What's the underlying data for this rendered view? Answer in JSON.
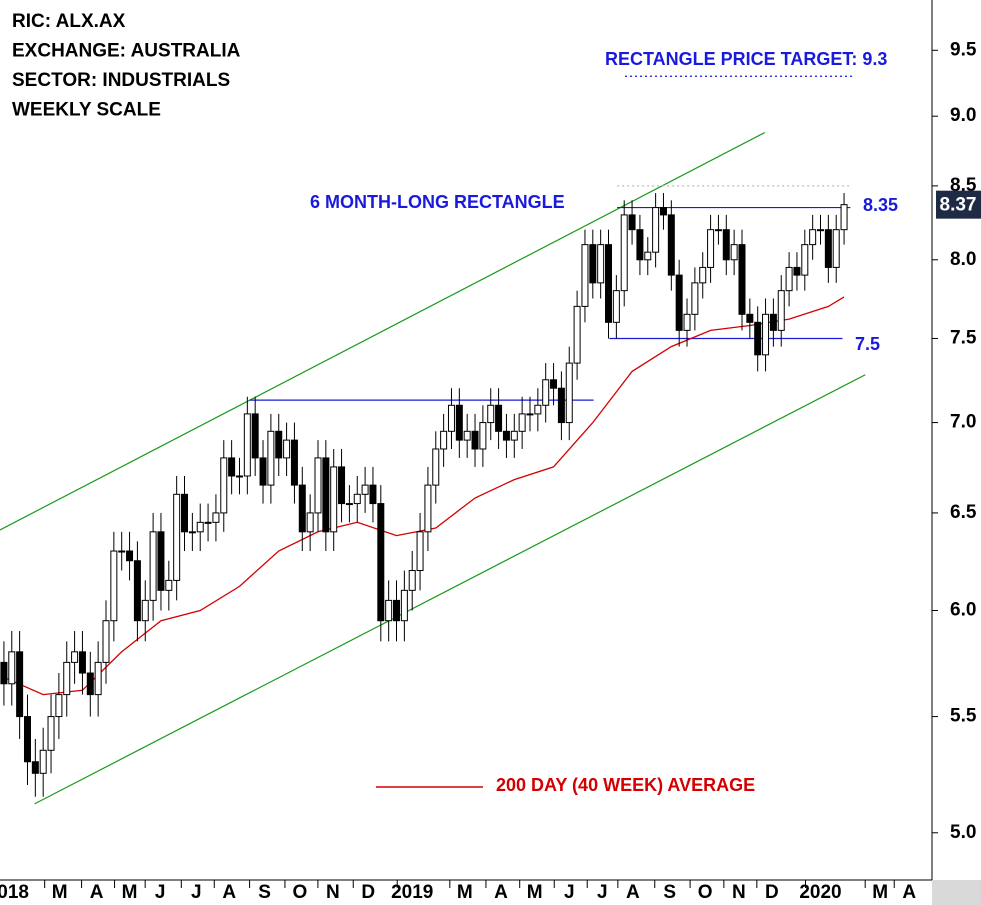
{
  "chart_data": {
    "type": "candlestick",
    "info": [
      "RIC: ALX.AX",
      "EXCHANGE: AUSTRALIA",
      "SECTOR: INDUSTRIALS",
      "WEEKLY SCALE"
    ],
    "log_scale": true,
    "xlim": [
      -0.5,
      118.2
    ],
    "ylim": [
      4.81,
      9.9
    ],
    "yticks": [
      {
        "value": 5,
        "label": "5.0"
      },
      5.5,
      {
        "value": 6,
        "label": "6.0"
      },
      6.5,
      {
        "value": 7,
        "label": "7.0"
      },
      7.5,
      {
        "value": 8,
        "label": "8.0"
      },
      8.5,
      {
        "value": 9,
        "label": "9.0"
      },
      9.5
    ],
    "xticks": [
      {
        "value": 0.5,
        "label": "2018"
      },
      {
        "value": 7.1,
        "label": "M"
      },
      {
        "value": 11.8,
        "label": "A"
      },
      {
        "value": 16,
        "label": "M"
      },
      {
        "value": 19.9,
        "label": "J"
      },
      {
        "value": 24.5,
        "label": "J"
      },
      {
        "value": 28.7,
        "label": "A"
      },
      {
        "value": 33.2,
        "label": "S"
      },
      {
        "value": 37.7,
        "label": "O"
      },
      {
        "value": 41.9,
        "label": "N"
      },
      {
        "value": 46.4,
        "label": "D"
      },
      {
        "value": 52,
        "label": "2019"
      },
      {
        "value": 58.7,
        "label": "M"
      },
      {
        "value": 63.3,
        "label": "A"
      },
      {
        "value": 67.6,
        "label": "M"
      },
      {
        "value": 72,
        "label": "J"
      },
      {
        "value": 76.2,
        "label": "J"
      },
      {
        "value": 80.1,
        "label": "A"
      },
      {
        "value": 84.8,
        "label": "S"
      },
      {
        "value": 89.3,
        "label": "O"
      },
      {
        "value": 93.6,
        "label": "N"
      },
      {
        "value": 97.8,
        "label": "D"
      },
      {
        "value": 104,
        "label": "2020"
      },
      {
        "value": 111.6,
        "label": "M"
      },
      {
        "value": 115.3,
        "label": "A"
      }
    ],
    "open": [
      5.75,
      5.65,
      5.8,
      5.5,
      5.3,
      5.25,
      5.35,
      5.5,
      5.6,
      5.75,
      5.8,
      5.7,
      5.6,
      5.75,
      5.95,
      6.3,
      6.3,
      6.25,
      5.95,
      6.05,
      6.4,
      6.1,
      6.15,
      6.6,
      6.4,
      6.4,
      6.45,
      6.45,
      6.5,
      6.8,
      6.7,
      6.7,
      7.05,
      6.8,
      6.65,
      6.95,
      6.8,
      6.9,
      6.65,
      6.4,
      6.5,
      6.8,
      6.4,
      6.75,
      6.55,
      6.55,
      6.6,
      6.65,
      6.55,
      5.95,
      6.05,
      5.95,
      6.1,
      6.2,
      6.4,
      6.65,
      6.85,
      6.95,
      7.1,
      6.9,
      6.95,
      6.85,
      7.0,
      7.1,
      6.95,
      6.9,
      6.95,
      7.05,
      7.05,
      7.1,
      7.25,
      7.2,
      7.0,
      7.35,
      7.7,
      8.1,
      7.85,
      8.1,
      7.6,
      7.8,
      8.3,
      8.2,
      8.0,
      8.05,
      8.35,
      8.3,
      7.9,
      7.55,
      7.65,
      7.85,
      7.95,
      8.2,
      8.2,
      8.0,
      8.1,
      7.65,
      7.6,
      7.4,
      7.65,
      7.55,
      7.8,
      7.95,
      7.9,
      8.1,
      8.2,
      8.2,
      7.95,
      8.2
    ],
    "high": [
      5.85,
      5.9,
      5.9,
      5.6,
      5.4,
      5.45,
      5.6,
      5.7,
      5.85,
      5.9,
      5.9,
      5.8,
      5.85,
      6.05,
      6.4,
      6.4,
      6.4,
      6.35,
      6.15,
      6.5,
      6.5,
      6.25,
      6.7,
      6.7,
      6.5,
      6.55,
      6.55,
      6.6,
      6.9,
      6.9,
      6.8,
      7.15,
      7.15,
      6.9,
      7.05,
      7.05,
      7.0,
      7.0,
      6.75,
      6.6,
      6.9,
      6.9,
      6.85,
      6.85,
      6.65,
      6.7,
      6.75,
      6.75,
      6.65,
      6.15,
      6.15,
      6.2,
      6.3,
      6.5,
      6.75,
      6.95,
      7.05,
      7.2,
      7.2,
      7.05,
      7.05,
      7.1,
      7.2,
      7.2,
      7.05,
      7.05,
      7.15,
      7.15,
      7.2,
      7.35,
      7.35,
      7.3,
      7.45,
      7.8,
      8.2,
      8.2,
      8.2,
      8.2,
      7.9,
      8.4,
      8.4,
      8.3,
      8.15,
      8.45,
      8.45,
      8.4,
      8.0,
      7.75,
      7.95,
      8.05,
      8.3,
      8.3,
      8.3,
      8.2,
      8.2,
      7.75,
      7.7,
      7.75,
      7.75,
      7.9,
      8.05,
      8.05,
      8.2,
      8.3,
      8.3,
      8.3,
      8.3,
      8.45
    ],
    "low": [
      5.55,
      5.55,
      5.4,
      5.2,
      5.15,
      5.15,
      5.25,
      5.4,
      5.5,
      5.65,
      5.6,
      5.5,
      5.5,
      5.65,
      5.85,
      6.2,
      6.15,
      5.85,
      5.85,
      5.95,
      6.0,
      6.0,
      6.05,
      6.3,
      6.3,
      6.3,
      6.35,
      6.35,
      6.4,
      6.6,
      6.6,
      6.6,
      6.7,
      6.55,
      6.55,
      6.7,
      6.7,
      6.55,
      6.3,
      6.3,
      6.4,
      6.3,
      6.3,
      6.45,
      6.45,
      6.45,
      6.5,
      6.45,
      5.85,
      5.85,
      5.85,
      5.85,
      6.0,
      6.1,
      6.3,
      6.55,
      6.75,
      6.85,
      6.8,
      6.8,
      6.75,
      6.75,
      6.9,
      6.85,
      6.8,
      6.8,
      6.85,
      6.95,
      6.95,
      7.0,
      7.1,
      6.9,
      6.9,
      7.25,
      7.6,
      7.75,
      7.75,
      7.5,
      7.5,
      7.7,
      8.1,
      7.9,
      7.9,
      7.95,
      8.2,
      7.8,
      7.45,
      7.45,
      7.55,
      7.75,
      7.85,
      8.1,
      7.9,
      7.9,
      7.55,
      7.5,
      7.3,
      7.3,
      7.45,
      7.45,
      7.7,
      7.8,
      7.8,
      8.0,
      8.1,
      7.85,
      7.85,
      8.1
    ],
    "close": [
      5.65,
      5.8,
      5.5,
      5.3,
      5.25,
      5.35,
      5.5,
      5.6,
      5.75,
      5.8,
      5.7,
      5.6,
      5.75,
      5.95,
      6.3,
      6.3,
      6.25,
      5.95,
      6.05,
      6.4,
      6.1,
      6.15,
      6.6,
      6.4,
      6.4,
      6.45,
      6.45,
      6.5,
      6.8,
      6.7,
      6.7,
      7.05,
      6.8,
      6.65,
      6.95,
      6.8,
      6.9,
      6.65,
      6.4,
      6.5,
      6.8,
      6.4,
      6.75,
      6.55,
      6.55,
      6.6,
      6.65,
      6.55,
      5.95,
      6.05,
      5.95,
      6.1,
      6.2,
      6.4,
      6.65,
      6.85,
      6.95,
      7.1,
      6.9,
      6.95,
      6.85,
      7.0,
      7.1,
      6.95,
      6.9,
      6.95,
      7.05,
      7.05,
      7.1,
      7.25,
      7.2,
      7.0,
      7.35,
      7.7,
      8.1,
      7.85,
      8.1,
      7.6,
      7.8,
      8.3,
      8.2,
      8.0,
      8.05,
      8.35,
      8.3,
      7.9,
      7.55,
      7.65,
      7.85,
      7.95,
      8.2,
      8.2,
      8.0,
      8.1,
      7.65,
      7.6,
      7.4,
      7.65,
      7.55,
      7.8,
      7.95,
      7.9,
      8.1,
      8.2,
      8.2,
      7.95,
      8.2,
      8.37
    ],
    "up_color": "#ffffff",
    "down_color": "#000000",
    "ma": {
      "name": "200 DAY (40 WEEK) AVERAGE",
      "color": "#d40000",
      "x": [
        0,
        5,
        10,
        15,
        20,
        25,
        30,
        35,
        40,
        45,
        50,
        55,
        60,
        65,
        70,
        75,
        80,
        85,
        90,
        95,
        100,
        105,
        107
      ],
      "values": [
        5.68,
        5.6,
        5.62,
        5.8,
        5.95,
        6.0,
        6.12,
        6.3,
        6.4,
        6.45,
        6.38,
        6.42,
        6.58,
        6.68,
        6.75,
        7.0,
        7.3,
        7.45,
        7.55,
        7.58,
        7.62,
        7.7,
        7.76
      ]
    },
    "lines": [
      {
        "x": [
          -0.5,
          96.9
        ],
        "y": [
          6.41,
          8.88
        ],
        "color": "#1a9a1a",
        "style": "solid"
      },
      {
        "x": [
          3.9,
          109.7
        ],
        "y": [
          5.12,
          7.28
        ],
        "color": "#1a9a1a",
        "style": "solid"
      },
      {
        "x": [
          31.3,
          75.1
        ],
        "y": [
          7.13,
          7.13
        ],
        "color": "#1a1adc",
        "style": "solid"
      },
      {
        "x": [
          78.1,
          107.8
        ],
        "y": [
          8.35,
          8.35
        ],
        "color": "#1a1adc",
        "style": "solid"
      },
      {
        "x": [
          77.1,
          106.8
        ],
        "y": [
          7.5,
          7.5
        ],
        "color": "#1a1adc",
        "style": "solid"
      },
      {
        "x": [
          78.1,
          107.8
        ],
        "y": [
          8.5,
          8.5
        ],
        "color": "#bbbbbb",
        "style": "dotted"
      },
      {
        "x": [
          79.1,
          108.4
        ],
        "y": [
          9.3,
          9.3
        ],
        "color": "#1a1adc",
        "style": "dotted"
      }
    ],
    "annotations": [
      {
        "text": "RECTANGLE PRICE TARGET: 9.3",
        "color": "#1a1adc"
      },
      {
        "text": "6 MONTH-LONG RECTANGLE",
        "color": "#1a1adc"
      },
      {
        "text": "8.35",
        "color": "#1a1adc"
      },
      {
        "text": "7.5",
        "color": "#1a1adc"
      }
    ]
  }
}
